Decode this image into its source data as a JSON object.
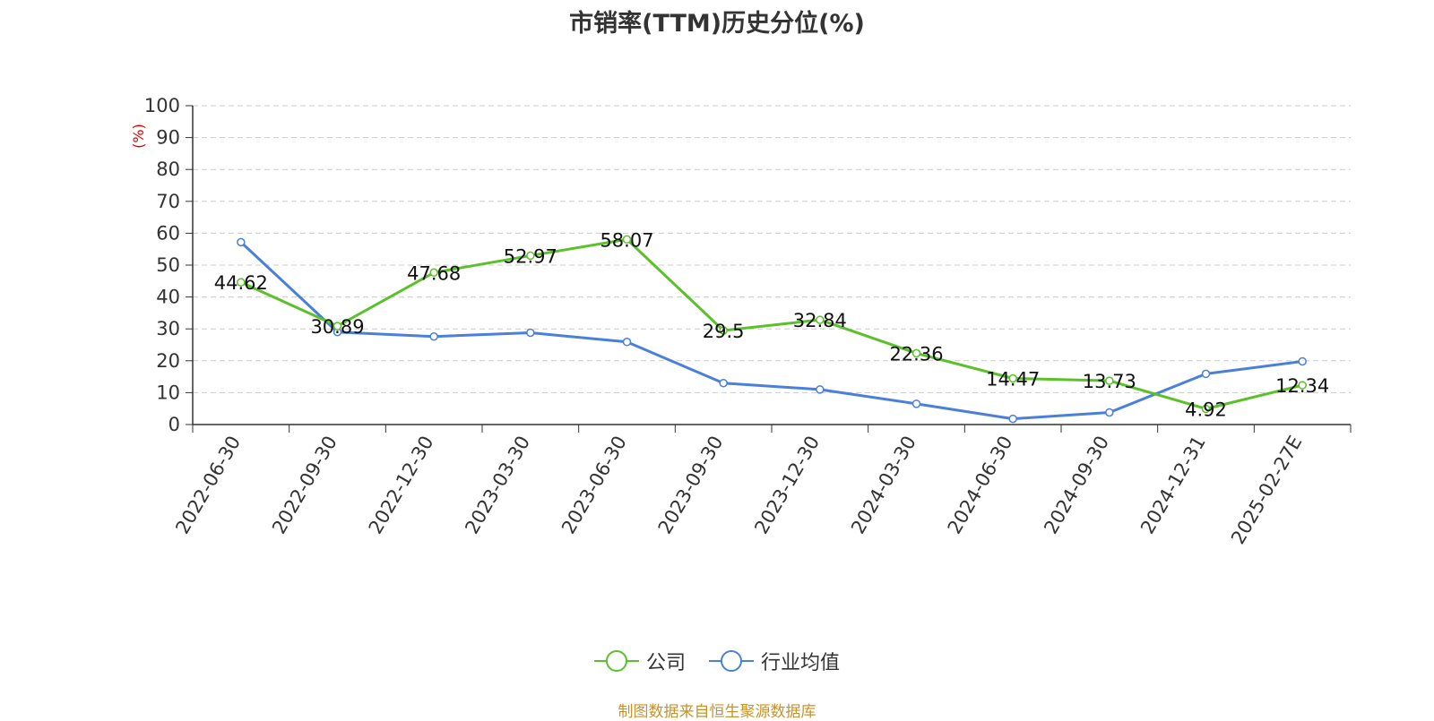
{
  "chart_data": {
    "type": "line",
    "title": "市销率(TTM)历史分位(%)",
    "ylabel": "(%)",
    "xlabel": "",
    "ylim": [
      0,
      100
    ],
    "yticks": [
      0,
      10,
      20,
      30,
      40,
      50,
      60,
      70,
      80,
      90,
      100
    ],
    "grid": true,
    "legend_position": "bottom-center",
    "categories": [
      "2022-06-30",
      "2022-09-30",
      "2022-12-30",
      "2023-03-30",
      "2023-06-30",
      "2023-09-30",
      "2023-12-30",
      "2024-03-30",
      "2024-06-30",
      "2024-09-30",
      "2024-12-31",
      "2025-02-27E"
    ],
    "series": [
      {
        "name": "公司",
        "color": "#5ac12a",
        "values": [
          44.62,
          30.89,
          47.68,
          52.97,
          58.07,
          29.5,
          32.84,
          22.36,
          14.47,
          13.73,
          4.92,
          12.34
        ],
        "data_labels": [
          "44.62",
          "30.89",
          "47.68",
          "52.97",
          "58.07",
          "29.5",
          "32.84",
          "22.36",
          "14.47",
          "13.73",
          "4.92",
          "12.34"
        ]
      },
      {
        "name": "行业均值",
        "color": "#4a7fdc",
        "values": [
          57.2,
          29.0,
          27.6,
          28.8,
          25.9,
          13.0,
          11.0,
          6.5,
          1.8,
          3.8,
          15.9,
          19.8
        ]
      }
    ]
  },
  "source_text": "制图数据来自恒生聚源数据库",
  "source_color": "#c8922a",
  "ylabel_color": "#e00000",
  "text_color": "#333333",
  "grid_color": "#cccccc",
  "axis_color": "#333333"
}
